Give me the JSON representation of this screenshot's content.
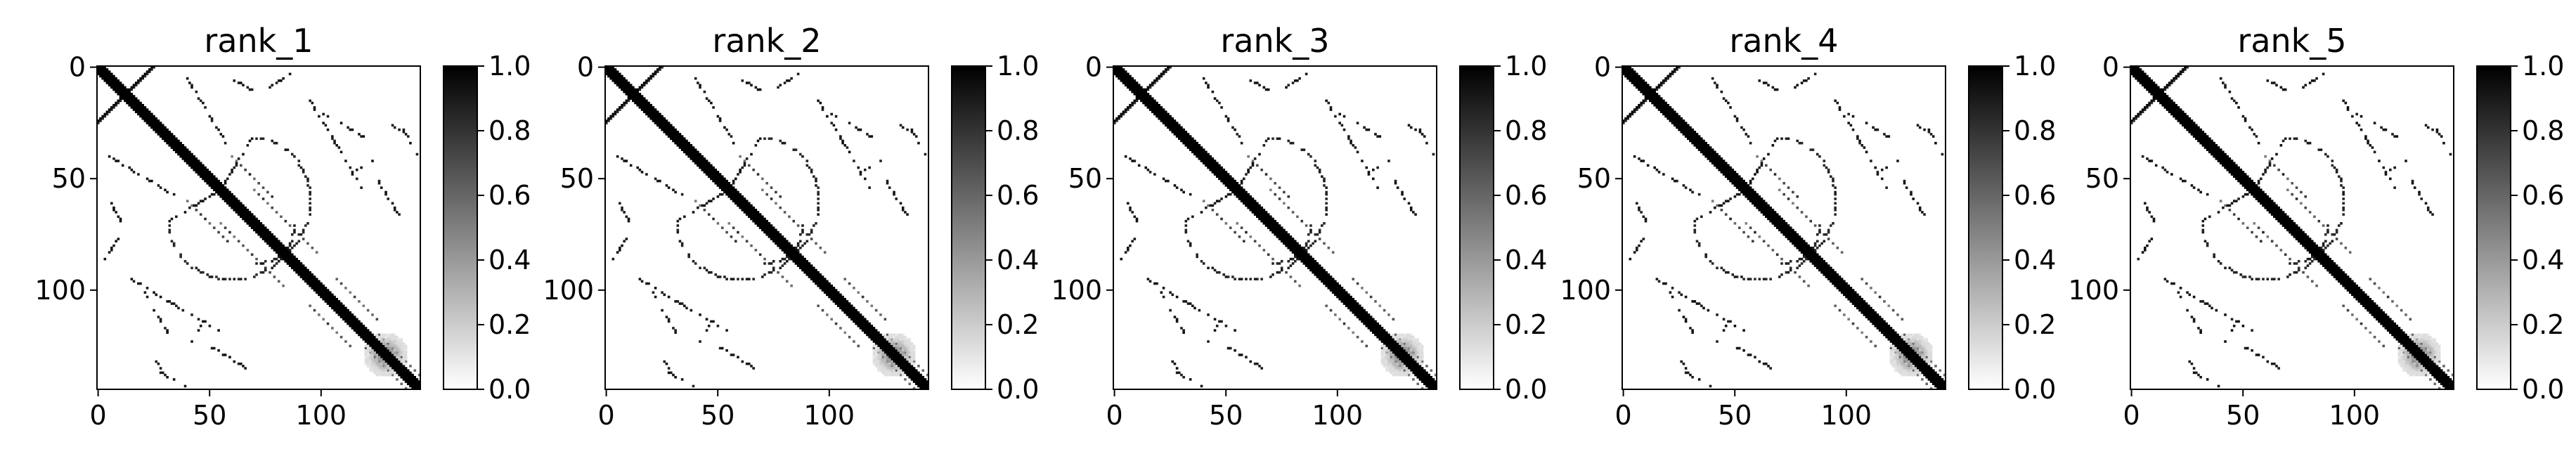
{
  "chart_data": [
    {
      "type": "heatmap",
      "title": "rank_1",
      "n": 145,
      "xticks": [
        0,
        50,
        100
      ],
      "yticks": [
        0,
        50,
        100
      ],
      "colorbar": {
        "min": 0.0,
        "max": 1.0,
        "ticks": [
          "0.0",
          "0.2",
          "0.4",
          "0.6",
          "0.8",
          "1.0"
        ],
        "colormap": "gray_r"
      }
    },
    {
      "type": "heatmap",
      "title": "rank_2",
      "n": 145,
      "xticks": [
        0,
        50,
        100
      ],
      "yticks": [
        0,
        50,
        100
      ],
      "colorbar": {
        "min": 0.0,
        "max": 1.0,
        "ticks": [
          "0.0",
          "0.2",
          "0.4",
          "0.6",
          "0.8",
          "1.0"
        ],
        "colormap": "gray_r"
      }
    },
    {
      "type": "heatmap",
      "title": "rank_3",
      "n": 145,
      "xticks": [
        0,
        50,
        100
      ],
      "yticks": [
        0,
        50,
        100
      ],
      "colorbar": {
        "min": 0.0,
        "max": 1.0,
        "ticks": [
          "0.0",
          "0.2",
          "0.4",
          "0.6",
          "0.8",
          "1.0"
        ],
        "colormap": "gray_r"
      }
    },
    {
      "type": "heatmap",
      "title": "rank_4",
      "n": 145,
      "xticks": [
        0,
        50,
        100
      ],
      "yticks": [
        0,
        50,
        100
      ],
      "colorbar": {
        "min": 0.0,
        "max": 1.0,
        "ticks": [
          "0.0",
          "0.2",
          "0.4",
          "0.6",
          "0.8",
          "1.0"
        ],
        "colormap": "gray_r"
      }
    },
    {
      "type": "heatmap",
      "title": "rank_5",
      "n": 145,
      "xticks": [
        0,
        50,
        100
      ],
      "yticks": [
        0,
        50,
        100
      ],
      "colorbar": {
        "min": 0.0,
        "max": 1.0,
        "ticks": [
          "0.0",
          "0.2",
          "0.4",
          "0.6",
          "0.8",
          "1.0"
        ],
        "colormap": "gray_r"
      }
    }
  ],
  "colors": {
    "low": "#ffffff",
    "high": "#000000",
    "axis": "#000000"
  }
}
